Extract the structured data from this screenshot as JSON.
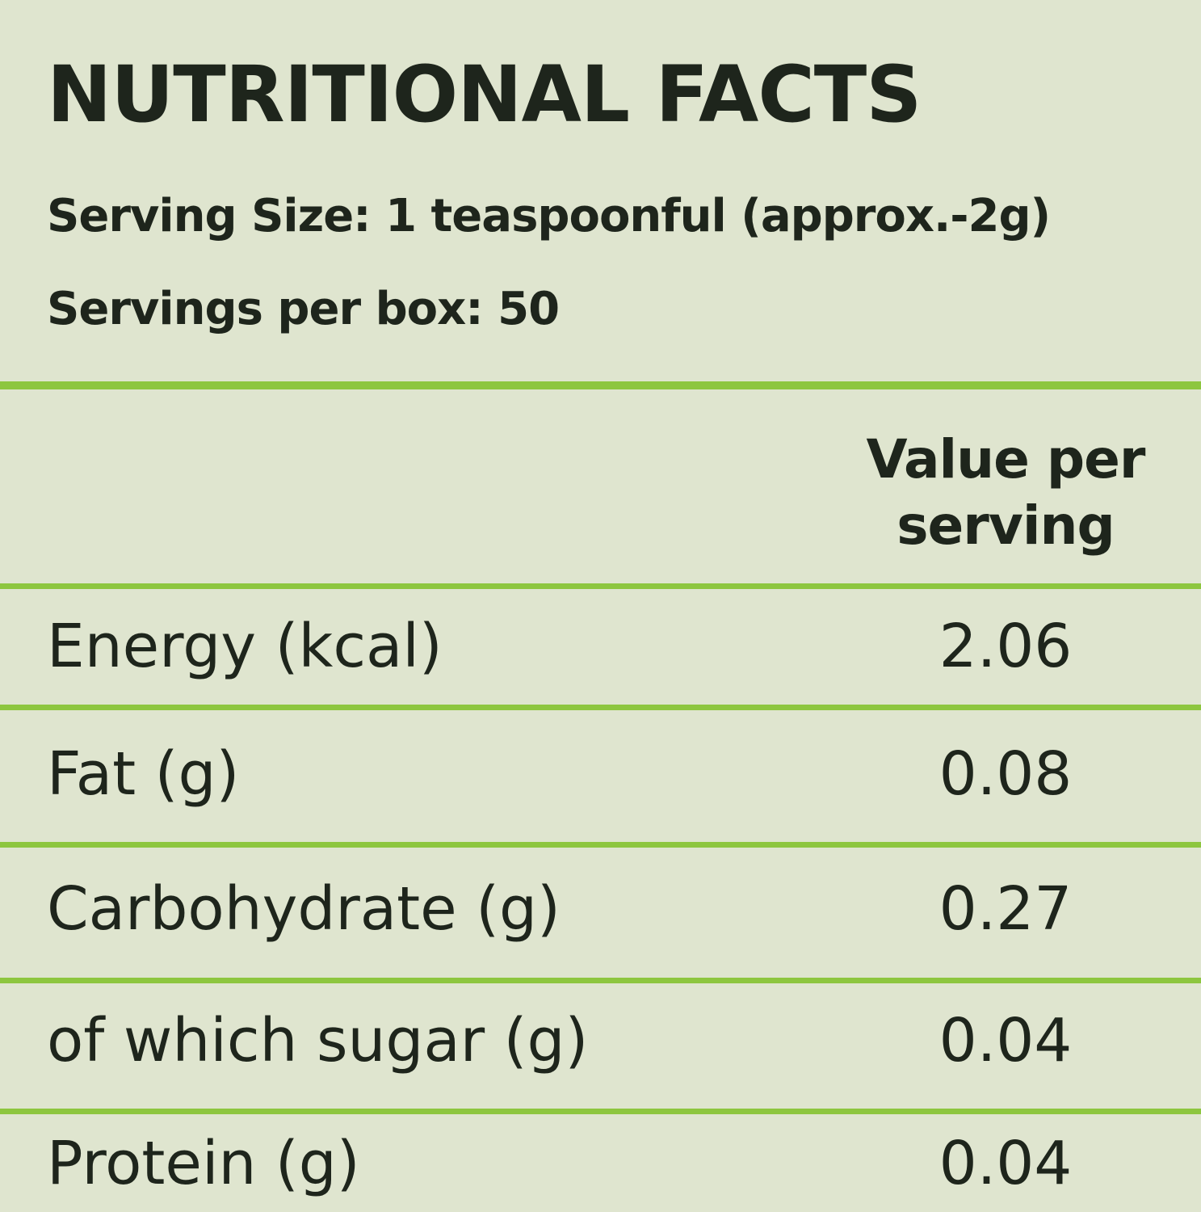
{
  "title": "NUTRITIONAL FACTS",
  "serving_size": "Serving Size: 1 teaspoonful (approx.-2g)",
  "servings_per_box": "Servings per box: 50",
  "table": {
    "value_header": "Value per serving",
    "rows": [
      [
        "Energy (kcal)",
        "2.06"
      ],
      [
        "Fat (g)",
        "0.08"
      ],
      [
        "Carbohydrate (g)",
        "0.27"
      ],
      [
        "of which sugar (g)",
        "0.04"
      ],
      [
        "Protein (g)",
        "0.04"
      ]
    ]
  }
}
